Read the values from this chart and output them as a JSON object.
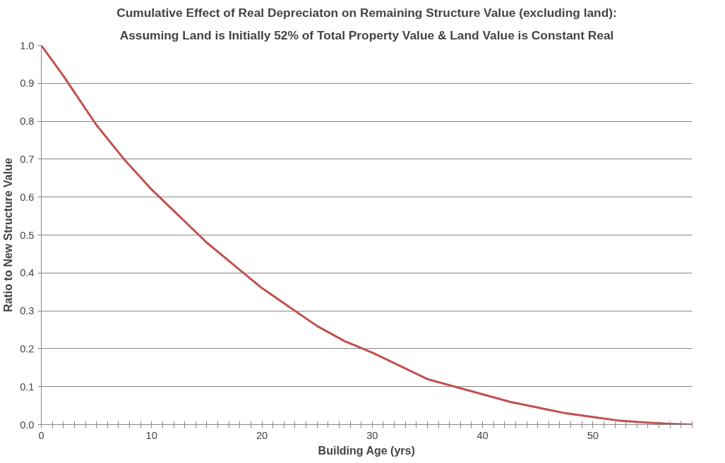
{
  "chart_data": {
    "type": "line",
    "title": "Cumulative Effect of Real Depreciaton on Remaining Structure Value (excluding land):",
    "subtitle": "Assuming Land is Initially 52% of Total Property Value & Land Value is Constant Real",
    "xlabel": "Building Age (yrs)",
    "ylabel": "Ratio to New Structure Value",
    "series": [
      {
        "color": "#c0504d",
        "x": [
          0,
          2,
          5,
          7.5,
          10,
          12.5,
          15,
          17.5,
          20,
          22.5,
          25,
          27.5,
          30,
          32.5,
          35,
          37.5,
          40,
          42.5,
          45,
          47.5,
          50,
          52.5,
          55,
          57,
          59
        ],
        "values": [
          1.0,
          0.92,
          0.79,
          0.7,
          0.62,
          0.55,
          0.48,
          0.42,
          0.36,
          0.31,
          0.26,
          0.22,
          0.19,
          0.155,
          0.12,
          0.1,
          0.08,
          0.06,
          0.045,
          0.03,
          0.02,
          0.01,
          0.005,
          0.002,
          0.0
        ]
      }
    ],
    "xlim": [
      0,
      59
    ],
    "ylim": [
      0,
      1
    ],
    "xticks": [
      0,
      {
        "value": 1,
        "label": null
      },
      {
        "value": 2,
        "label": null
      },
      {
        "value": 3,
        "label": null
      },
      {
        "value": 4,
        "label": null
      },
      {
        "value": 5,
        "label": null
      },
      {
        "value": 6,
        "label": null
      },
      {
        "value": 7,
        "label": null
      },
      {
        "value": 8,
        "label": null
      },
      {
        "value": 9,
        "label": null
      },
      10,
      {
        "value": 11,
        "label": null
      },
      {
        "value": 12,
        "label": null
      },
      {
        "value": 13,
        "label": null
      },
      {
        "value": 14,
        "label": null
      },
      {
        "value": 15,
        "label": null
      },
      {
        "value": 16,
        "label": null
      },
      {
        "value": 17,
        "label": null
      },
      {
        "value": 18,
        "label": null
      },
      {
        "value": 19,
        "label": null
      },
      20,
      {
        "value": 21,
        "label": null
      },
      {
        "value": 22,
        "label": null
      },
      {
        "value": 23,
        "label": null
      },
      {
        "value": 24,
        "label": null
      },
      {
        "value": 25,
        "label": null
      },
      {
        "value": 26,
        "label": null
      },
      {
        "value": 27,
        "label": null
      },
      {
        "value": 28,
        "label": null
      },
      {
        "value": 29,
        "label": null
      },
      30,
      {
        "value": 31,
        "label": null
      },
      {
        "value": 32,
        "label": null
      },
      {
        "value": 33,
        "label": null
      },
      {
        "value": 34,
        "label": null
      },
      {
        "value": 35,
        "label": null
      },
      {
        "value": 36,
        "label": null
      },
      {
        "value": 37,
        "label": null
      },
      {
        "value": 38,
        "label": null
      },
      {
        "value": 39,
        "label": null
      },
      40,
      {
        "value": 41,
        "label": null
      },
      {
        "value": 42,
        "label": null
      },
      {
        "value": 43,
        "label": null
      },
      {
        "value": 44,
        "label": null
      },
      {
        "value": 45,
        "label": null
      },
      {
        "value": 46,
        "label": null
      },
      {
        "value": 47,
        "label": null
      },
      {
        "value": 48,
        "label": null
      },
      {
        "value": 49,
        "label": null
      },
      50,
      {
        "value": 51,
        "label": null
      },
      {
        "value": 52,
        "label": null
      },
      {
        "value": 53,
        "label": null
      },
      {
        "value": 54,
        "label": null
      },
      {
        "value": 55,
        "label": null
      },
      {
        "value": 56,
        "label": null
      },
      {
        "value": 57,
        "label": null
      },
      {
        "value": 58,
        "label": null
      },
      {
        "value": 59,
        "label": null
      }
    ],
    "yticks": [
      {
        "value": 0,
        "label": "0.0"
      },
      {
        "value": 0.1,
        "label": "0.1"
      },
      {
        "value": 0.2,
        "label": "0.2"
      },
      {
        "value": 0.3,
        "label": "0.3"
      },
      {
        "value": 0.4,
        "label": "0.4"
      },
      {
        "value": 0.5,
        "label": "0.5"
      },
      {
        "value": 0.6,
        "label": "0.6"
      },
      {
        "value": 0.7,
        "label": "0.7"
      },
      {
        "value": 0.8,
        "label": "0.8"
      },
      {
        "value": 0.9,
        "label": "0.9"
      },
      {
        "value": 1,
        "label": "1.0"
      }
    ],
    "grid": "y",
    "marker": "none",
    "line_style": "solid"
  }
}
